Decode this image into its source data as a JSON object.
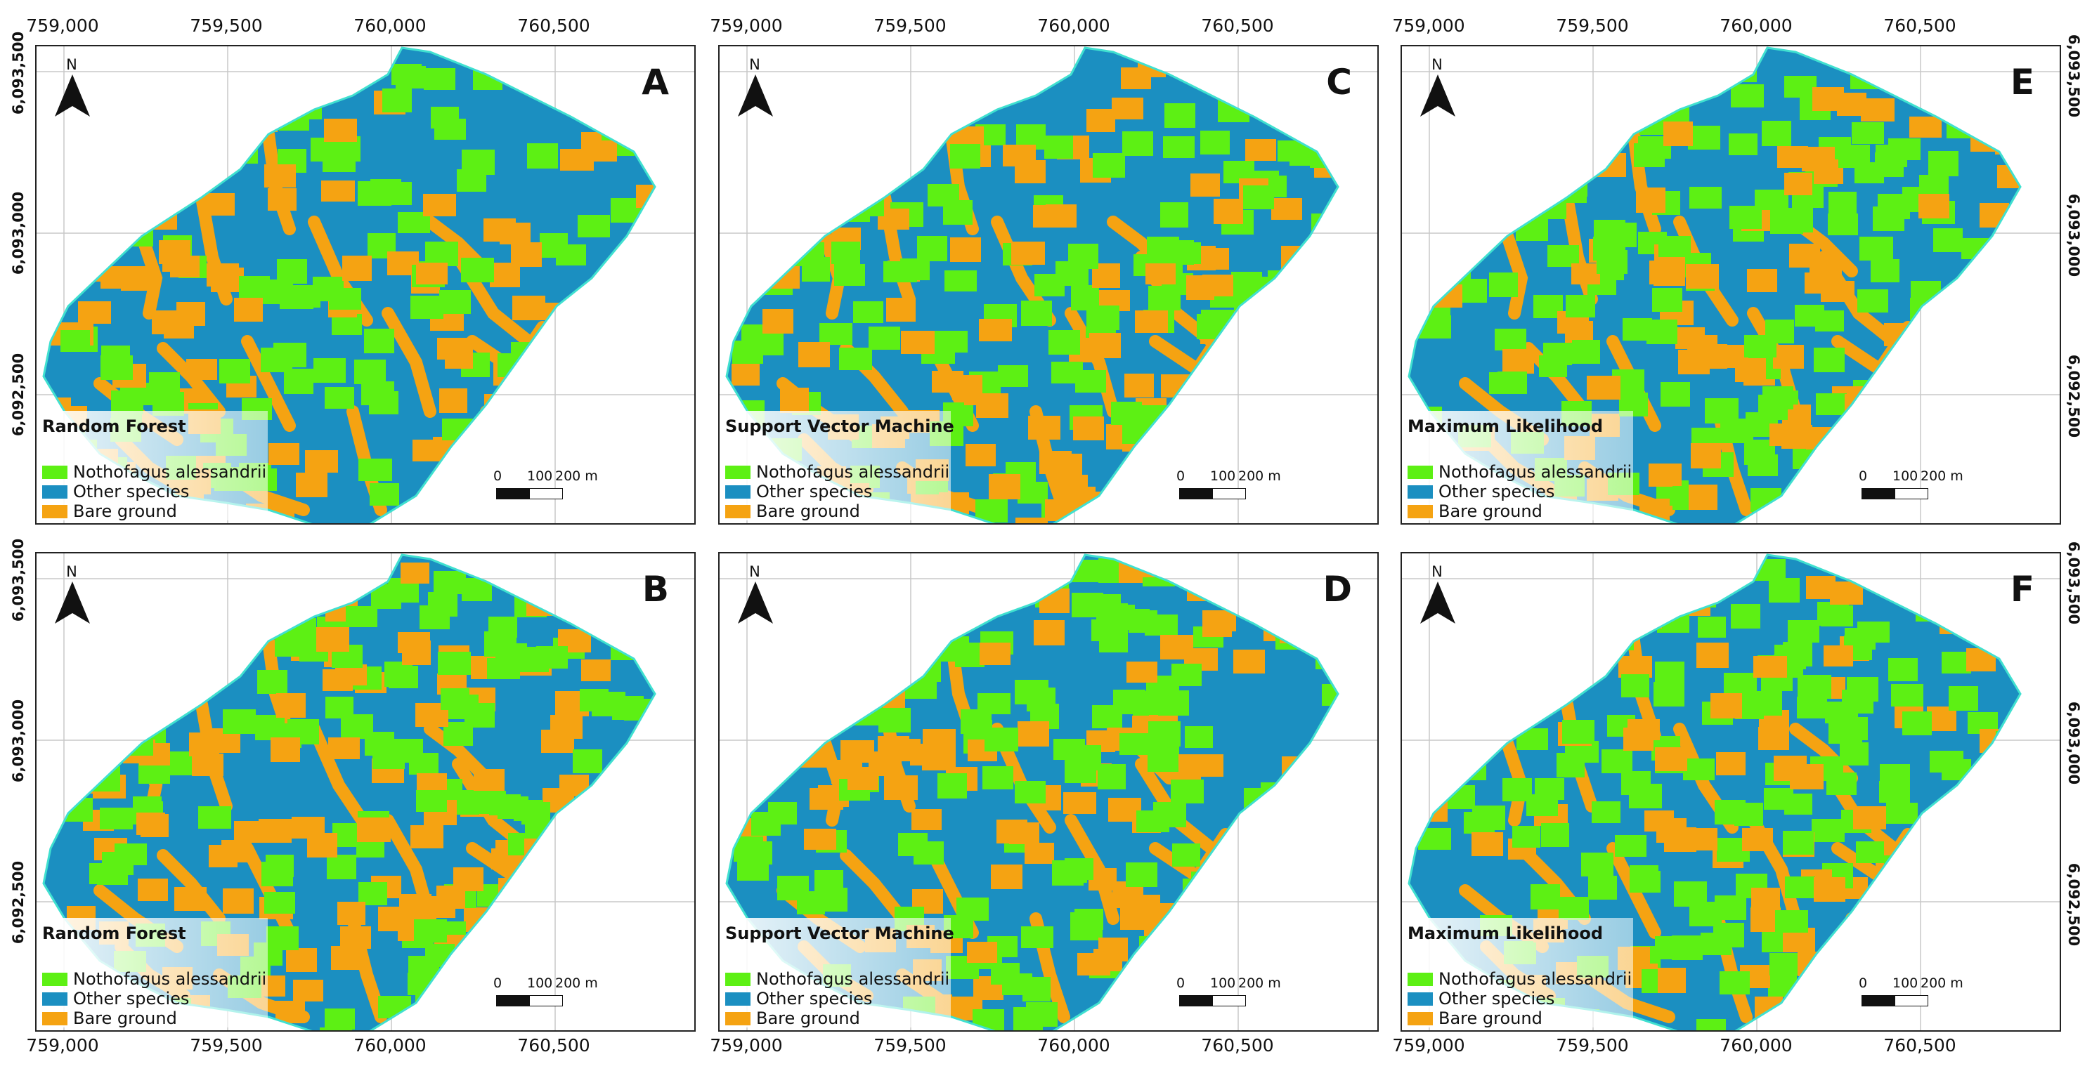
{
  "x_axis_labels": [
    "759,000",
    "759,500",
    "760,000",
    "760,500"
  ],
  "y_axis_labels": [
    "6,093,500",
    "6,093,000",
    "6,092,500"
  ],
  "north_label": "N",
  "legend_items": [
    {
      "label": "Nothofagus alessandrii",
      "color": "#5df014"
    },
    {
      "label": "Other species",
      "color": "#1b8fc1"
    },
    {
      "label": "Bare ground",
      "color": "#f5a312"
    }
  ],
  "scale_bar": {
    "ticks": [
      "0",
      "100",
      "200 m"
    ]
  },
  "colors": {
    "outline": "#40e0d0",
    "gridline": "#c8c8c8"
  },
  "panels": [
    {
      "label": "A",
      "method": "Random Forest"
    },
    {
      "label": "B",
      "method": "Random Forest"
    },
    {
      "label": "C",
      "method": "Support Vector Machine"
    },
    {
      "label": "D",
      "method": "Support Vector Machine"
    },
    {
      "label": "E",
      "method": "Maximum Likelihood"
    },
    {
      "label": "F",
      "method": "Maximum Likelihood"
    }
  ]
}
